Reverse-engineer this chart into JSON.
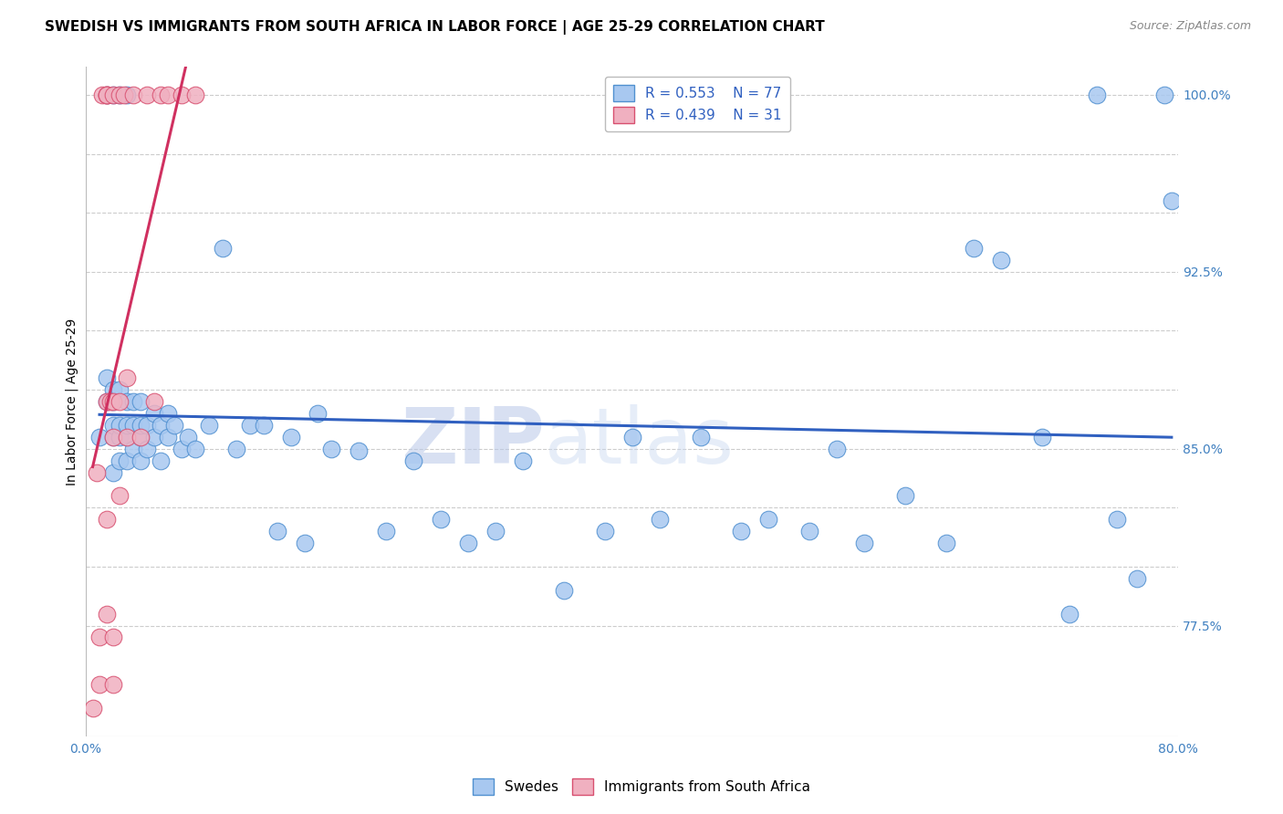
{
  "title": "SWEDISH VS IMMIGRANTS FROM SOUTH AFRICA IN LABOR FORCE | AGE 25-29 CORRELATION CHART",
  "source": "Source: ZipAtlas.com",
  "ylabel": "In Labor Force | Age 25-29",
  "watermark_zip": "ZIP",
  "watermark_atlas": "atlas",
  "legend_blue_r": "R = 0.553",
  "legend_blue_n": "N = 77",
  "legend_pink_r": "R = 0.439",
  "legend_pink_n": "N = 31",
  "legend_blue_label": "Swedes",
  "legend_pink_label": "Immigrants from South Africa",
  "xlim": [
    0.0,
    0.8
  ],
  "ylim": [
    0.728,
    1.012
  ],
  "x_ticks": [
    0.0,
    0.1,
    0.2,
    0.3,
    0.4,
    0.5,
    0.6,
    0.7,
    0.8
  ],
  "x_tick_labels": [
    "0.0%",
    "",
    "",
    "",
    "",
    "",
    "",
    "",
    "80.0%"
  ],
  "y_ticks": [
    0.775,
    0.8,
    0.825,
    0.85,
    0.875,
    0.9,
    0.925,
    0.95,
    0.975,
    1.0
  ],
  "y_tick_labels_right": [
    "77.5%",
    "",
    "",
    "85.0%",
    "",
    "",
    "92.5%",
    "",
    "",
    "100.0%"
  ],
  "blue_color": "#a8c8f0",
  "pink_color": "#f0b0c0",
  "blue_edge_color": "#5090d0",
  "pink_edge_color": "#d85070",
  "blue_line_color": "#3060c0",
  "pink_line_color": "#d03060",
  "grid_color": "#cccccc",
  "background_color": "#ffffff",
  "title_fontsize": 11,
  "axis_label_fontsize": 10,
  "tick_fontsize": 10,
  "dot_size": 180,
  "blue_scatter_x": [
    0.01,
    0.015,
    0.015,
    0.015,
    0.02,
    0.02,
    0.02,
    0.02,
    0.02,
    0.02,
    0.025,
    0.025,
    0.025,
    0.025,
    0.025,
    0.03,
    0.03,
    0.03,
    0.03,
    0.03,
    0.035,
    0.035,
    0.035,
    0.04,
    0.04,
    0.04,
    0.04,
    0.045,
    0.045,
    0.05,
    0.05,
    0.055,
    0.055,
    0.06,
    0.06,
    0.065,
    0.07,
    0.075,
    0.08,
    0.09,
    0.1,
    0.11,
    0.12,
    0.13,
    0.14,
    0.15,
    0.16,
    0.17,
    0.18,
    0.2,
    0.22,
    0.24,
    0.26,
    0.28,
    0.3,
    0.32,
    0.35,
    0.38,
    0.4,
    0.42,
    0.45,
    0.48,
    0.5,
    0.53,
    0.55,
    0.57,
    0.6,
    0.63,
    0.65,
    0.67,
    0.7,
    0.72,
    0.74,
    0.755,
    0.77,
    0.79,
    0.795
  ],
  "blue_scatter_y": [
    0.855,
    0.87,
    0.88,
    1.0,
    0.84,
    0.855,
    0.86,
    0.87,
    0.875,
    1.0,
    0.845,
    0.855,
    0.86,
    0.875,
    1.0,
    0.845,
    0.855,
    0.86,
    0.87,
    1.0,
    0.85,
    0.86,
    0.87,
    0.845,
    0.855,
    0.86,
    0.87,
    0.85,
    0.86,
    0.855,
    0.865,
    0.845,
    0.86,
    0.855,
    0.865,
    0.86,
    0.85,
    0.855,
    0.85,
    0.86,
    0.935,
    0.85,
    0.86,
    0.86,
    0.815,
    0.855,
    0.81,
    0.865,
    0.85,
    0.849,
    0.815,
    0.845,
    0.82,
    0.81,
    0.815,
    0.845,
    0.79,
    0.815,
    0.855,
    0.82,
    0.855,
    0.815,
    0.82,
    0.815,
    0.85,
    0.81,
    0.83,
    0.81,
    0.935,
    0.93,
    0.855,
    0.78,
    1.0,
    0.82,
    0.795,
    1.0,
    0.955
  ],
  "pink_scatter_x": [
    0.005,
    0.008,
    0.01,
    0.01,
    0.012,
    0.015,
    0.015,
    0.015,
    0.015,
    0.015,
    0.015,
    0.018,
    0.02,
    0.02,
    0.02,
    0.02,
    0.02,
    0.025,
    0.025,
    0.025,
    0.028,
    0.03,
    0.03,
    0.035,
    0.04,
    0.045,
    0.05,
    0.055,
    0.06,
    0.07,
    0.08
  ],
  "pink_scatter_y": [
    0.74,
    0.84,
    0.75,
    0.77,
    1.0,
    0.78,
    0.82,
    0.87,
    1.0,
    1.0,
    1.0,
    0.87,
    0.75,
    0.77,
    0.855,
    0.87,
    1.0,
    0.83,
    0.87,
    1.0,
    1.0,
    0.855,
    0.88,
    1.0,
    0.855,
    1.0,
    0.87,
    1.0,
    1.0,
    1.0,
    1.0
  ]
}
